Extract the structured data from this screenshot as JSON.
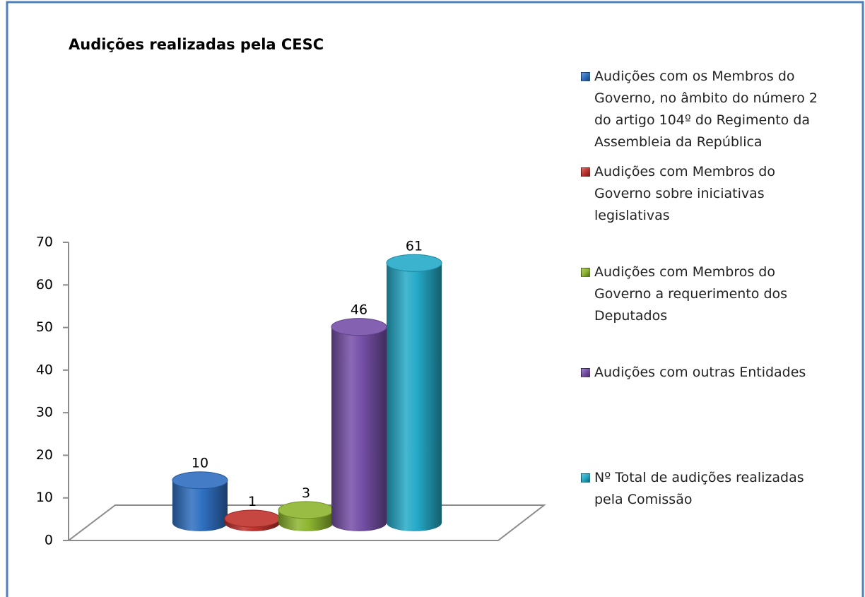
{
  "chart_data": {
    "type": "bar",
    "title": "Audições realizadas pela CESC",
    "categories": [
      null
    ],
    "series": [
      {
        "name": "Audições com os Membros do Governo, no âmbito do número 2 do artigo 104º do Regimento da Assembleia da República",
        "color": "#2f6fc0",
        "values": [
          10
        ]
      },
      {
        "name": "Audições com Membros do Governo sobre iniciativas legislativas",
        "color": "#c0322d",
        "values": [
          1
        ]
      },
      {
        "name": "Audições com Membros do Governo a requerimento dos Deputados",
        "color": "#8db52f",
        "values": [
          3
        ]
      },
      {
        "name": "Audições com outras Entidades",
        "color": "#7650a8",
        "values": [
          46
        ]
      },
      {
        "name": "Nº Total de audições realizadas pela Comissão",
        "color": "#25aac8",
        "values": [
          61
        ]
      }
    ],
    "ylim": [
      0,
      70
    ],
    "yticks": [
      0,
      10,
      20,
      30,
      40,
      50,
      60,
      70
    ],
    "legend": "right"
  }
}
